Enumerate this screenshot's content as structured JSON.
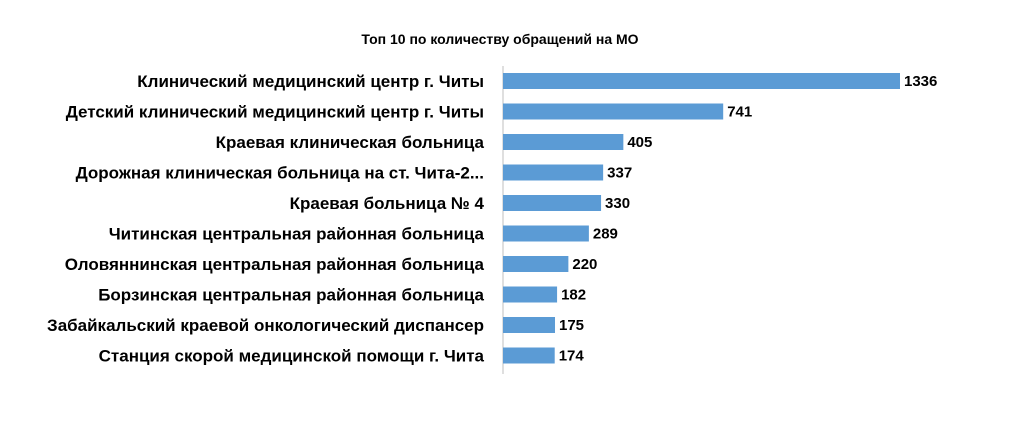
{
  "chart_data": {
    "type": "bar",
    "orientation": "horizontal",
    "title": "Топ 10 по количеству обращений на МО",
    "categories": [
      "Клинический  медицинский  центр г. Читы",
      "Детский клинический  медицинский  центр г. Читы",
      "Краевая  клиническая  больница",
      "Дорожная  клиническая  больница  на  ст. Чита-2...",
      "Краевая  больница  № 4",
      "Читинская  центральная  районная  больница",
      "Оловяннинская  центральная  районная  больница",
      "Борзинская  центральная  районная  больница",
      "Забайкальский  краевой  онкологический  диспансер",
      "Станция  скорой  медицинской  помощи  г. Чита"
    ],
    "values": [
      1336,
      741,
      405,
      337,
      330,
      289,
      220,
      182,
      175,
      174
    ],
    "xlim": [
      0,
      1336
    ],
    "grid": false,
    "legend": "none",
    "bar_color": "#5B9BD5",
    "axis_color": "#BFBFBF"
  }
}
